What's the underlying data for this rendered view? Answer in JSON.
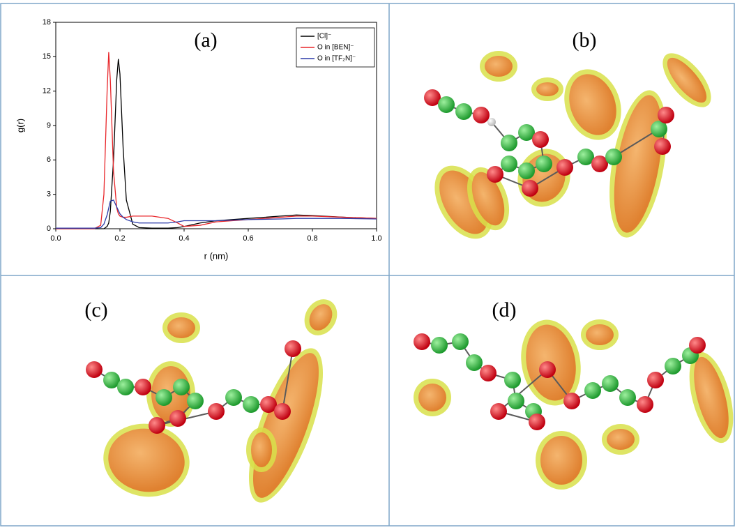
{
  "chart_data": {
    "type": "line",
    "annotation": "(a)",
    "x_label": "r (nm)",
    "y_label": "g(r)",
    "x": [
      0,
      0.1,
      0.12,
      0.14,
      0.15,
      0.16,
      0.165,
      0.17,
      0.18,
      0.19,
      0.195,
      0.2,
      0.21,
      0.22,
      0.24,
      0.26,
      0.3,
      0.35,
      0.38,
      0.4,
      0.45,
      0.5,
      0.6,
      0.7,
      0.75,
      0.8,
      0.9,
      1.0
    ],
    "series": [
      {
        "name": "[Cl]⁻",
        "color": "#000000",
        "values": [
          0,
          0,
          0,
          0,
          0,
          0.2,
          0.5,
          1.5,
          6,
          13,
          14.8,
          13.5,
          7,
          2.5,
          0.4,
          0.1,
          0.05,
          0.05,
          0.1,
          0.2,
          0.5,
          0.7,
          0.9,
          1.1,
          1.2,
          1.15,
          1.0,
          0.9
        ]
      },
      {
        "name": "O in [BEN]⁻",
        "color": "#e8262a",
        "values": [
          0,
          0,
          0,
          0.3,
          3,
          12,
          15.4,
          13,
          5,
          1.8,
          1.3,
          1.1,
          1.0,
          1.0,
          1.1,
          1.1,
          1.1,
          0.9,
          0.5,
          0.2,
          0.3,
          0.6,
          0.8,
          1.0,
          1.1,
          1.1,
          1.0,
          0.9
        ]
      },
      {
        "name": "O in [TF₂N]⁻",
        "color": "#2b3aa8",
        "values": [
          0.05,
          0.05,
          0.05,
          0.1,
          0.4,
          1.2,
          1.8,
          2.4,
          2.5,
          1.9,
          1.6,
          1.3,
          1.0,
          0.8,
          0.6,
          0.5,
          0.5,
          0.5,
          0.6,
          0.7,
          0.7,
          0.7,
          0.8,
          0.85,
          0.9,
          0.9,
          0.9,
          0.85
        ]
      }
    ],
    "xlim": [
      0,
      1.0
    ],
    "ylim": [
      0,
      18
    ],
    "xticks": [
      {
        "value": 0,
        "label": "0.0"
      },
      {
        "value": 0.2,
        "label": "0.2"
      },
      {
        "value": 0.4,
        "label": "0.4"
      },
      {
        "value": 0.6,
        "label": "0.6"
      },
      {
        "value": 0.8,
        "label": "0.8"
      },
      {
        "value": 1.0,
        "label": "1.0"
      }
    ],
    "yticks": [
      0,
      3,
      6,
      9,
      12,
      15,
      18
    ],
    "legend": "upper right",
    "grid": false
  },
  "panels": [
    {
      "label": "(b)"
    },
    {
      "label": "(c)"
    },
    {
      "label": "(d)"
    }
  ]
}
